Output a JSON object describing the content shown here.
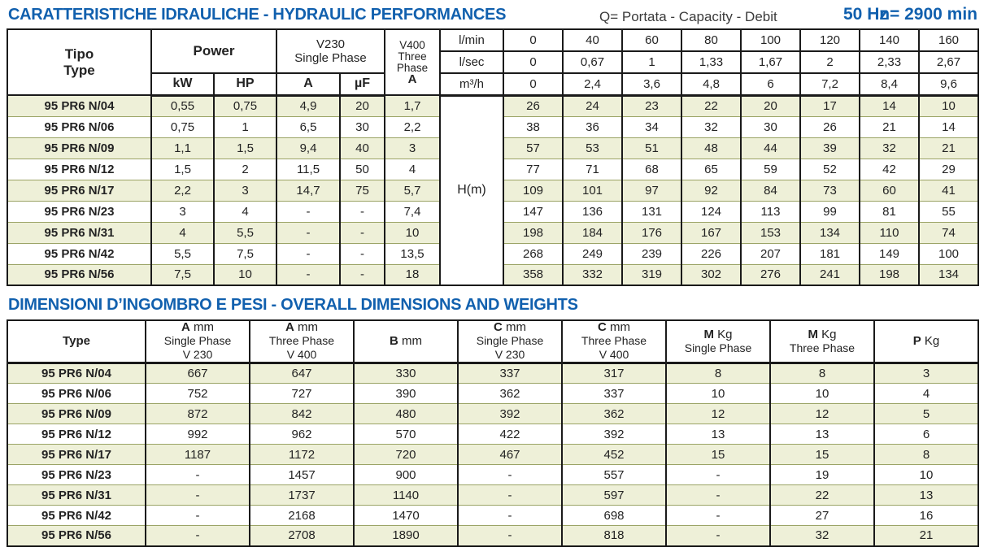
{
  "page": {
    "title_hydraulic": "CARATTERISTICHE IDRAULICHE - HYDRAULIC PERFORMANCES",
    "capacity_legend": "Q= Portata - Capacity - Debit",
    "frequency": "50 Hz",
    "speed": "n= 2900 min",
    "title_dimensions": "DIMENSIONI D’INGOMBRO E PESI - OVERALL DIMENSIONS AND WEIGHTS"
  },
  "colors": {
    "title_blue": "#1160ae",
    "row_band": "#eef0d8",
    "grid_olive": "#9ba466"
  },
  "hydraulic_table": {
    "header": {
      "tipo": "Tipo",
      "type": "Type",
      "power": "Power",
      "kw": "kW",
      "hp": "HP",
      "v230_line1": "V230",
      "v230_line2": "Single Phase",
      "amp": "A",
      "uf": "µF",
      "v400_lines": [
        "V400",
        "Three",
        "Phase"
      ],
      "v400_amp": "A",
      "flow_units": [
        "l/min",
        "l/sec",
        "m³/h"
      ],
      "flow_rows": [
        [
          "0",
          "40",
          "60",
          "80",
          "100",
          "120",
          "140",
          "160"
        ],
        [
          "0",
          "0,67",
          "1",
          "1,33",
          "1,67",
          "2",
          "2,33",
          "2,67"
        ],
        [
          "0",
          "2,4",
          "3,6",
          "4,8",
          "6",
          "7,2",
          "8,4",
          "9,6"
        ]
      ],
      "head_label": "H(m)"
    },
    "rows": [
      {
        "type": "95 PR6 N/04",
        "kw": "0,55",
        "hp": "0,75",
        "a": "4,9",
        "uf": "20",
        "v400a": "1,7",
        "head": [
          "26",
          "24",
          "23",
          "22",
          "20",
          "17",
          "14",
          "10"
        ]
      },
      {
        "type": "95 PR6 N/06",
        "kw": "0,75",
        "hp": "1",
        "a": "6,5",
        "uf": "30",
        "v400a": "2,2",
        "head": [
          "38",
          "36",
          "34",
          "32",
          "30",
          "26",
          "21",
          "14"
        ]
      },
      {
        "type": "95 PR6 N/09",
        "kw": "1,1",
        "hp": "1,5",
        "a": "9,4",
        "uf": "40",
        "v400a": "3",
        "head": [
          "57",
          "53",
          "51",
          "48",
          "44",
          "39",
          "32",
          "21"
        ]
      },
      {
        "type": "95 PR6 N/12",
        "kw": "1,5",
        "hp": "2",
        "a": "11,5",
        "uf": "50",
        "v400a": "4",
        "head": [
          "77",
          "71",
          "68",
          "65",
          "59",
          "52",
          "42",
          "29"
        ]
      },
      {
        "type": "95 PR6 N/17",
        "kw": "2,2",
        "hp": "3",
        "a": "14,7",
        "uf": "75",
        "v400a": "5,7",
        "head": [
          "109",
          "101",
          "97",
          "92",
          "84",
          "73",
          "60",
          "41"
        ]
      },
      {
        "type": "95 PR6 N/23",
        "kw": "3",
        "hp": "4",
        "a": "-",
        "uf": "-",
        "v400a": "7,4",
        "head": [
          "147",
          "136",
          "131",
          "124",
          "113",
          "99",
          "81",
          "55"
        ]
      },
      {
        "type": "95 PR6 N/31",
        "kw": "4",
        "hp": "5,5",
        "a": "-",
        "uf": "-",
        "v400a": "10",
        "head": [
          "198",
          "184",
          "176",
          "167",
          "153",
          "134",
          "110",
          "74"
        ]
      },
      {
        "type": "95 PR6 N/42",
        "kw": "5,5",
        "hp": "7,5",
        "a": "-",
        "uf": "-",
        "v400a": "13,5",
        "head": [
          "268",
          "249",
          "239",
          "226",
          "207",
          "181",
          "149",
          "100"
        ]
      },
      {
        "type": "95 PR6 N/56",
        "kw": "7,5",
        "hp": "10",
        "a": "-",
        "uf": "-",
        "v400a": "18",
        "head": [
          "358",
          "332",
          "319",
          "302",
          "276",
          "241",
          "198",
          "134"
        ]
      }
    ]
  },
  "dimensions_table": {
    "columns": [
      {
        "label": "Type"
      },
      {
        "sym": "A",
        "unit": "mm",
        "line2": "Single Phase",
        "line3": "V 230"
      },
      {
        "sym": "A",
        "unit": "mm",
        "line2": "Three Phase",
        "line3": "V 400"
      },
      {
        "sym": "B",
        "unit": "mm"
      },
      {
        "sym": "C",
        "unit": "mm",
        "line2": "Single Phase",
        "line3": "V 230"
      },
      {
        "sym": "C",
        "unit": "mm",
        "line2": "Three Phase",
        "line3": "V 400"
      },
      {
        "sym": "M",
        "unit": "Kg",
        "line2": "Single Phase"
      },
      {
        "sym": "M",
        "unit": "Kg",
        "line2": "Three Phase"
      },
      {
        "sym": "P",
        "unit": "Kg"
      }
    ],
    "rows": [
      {
        "type": "95 PR6 N/04",
        "values": [
          "667",
          "647",
          "330",
          "337",
          "317",
          "8",
          "8",
          "3"
        ]
      },
      {
        "type": "95 PR6 N/06",
        "values": [
          "752",
          "727",
          "390",
          "362",
          "337",
          "10",
          "10",
          "4"
        ]
      },
      {
        "type": "95 PR6 N/09",
        "values": [
          "872",
          "842",
          "480",
          "392",
          "362",
          "12",
          "12",
          "5"
        ]
      },
      {
        "type": "95 PR6 N/12",
        "values": [
          "992",
          "962",
          "570",
          "422",
          "392",
          "13",
          "13",
          "6"
        ]
      },
      {
        "type": "95 PR6 N/17",
        "values": [
          "1187",
          "1172",
          "720",
          "467",
          "452",
          "15",
          "15",
          "8"
        ]
      },
      {
        "type": "95 PR6 N/23",
        "values": [
          "-",
          "1457",
          "900",
          "-",
          "557",
          "-",
          "19",
          "10"
        ]
      },
      {
        "type": "95 PR6 N/31",
        "values": [
          "-",
          "1737",
          "1140",
          "-",
          "597",
          "-",
          "22",
          "13"
        ]
      },
      {
        "type": "95 PR6 N/42",
        "values": [
          "-",
          "2168",
          "1470",
          "-",
          "698",
          "-",
          "27",
          "16"
        ]
      },
      {
        "type": "95 PR6 N/56",
        "values": [
          "-",
          "2708",
          "1890",
          "-",
          "818",
          "-",
          "32",
          "21"
        ]
      }
    ]
  }
}
